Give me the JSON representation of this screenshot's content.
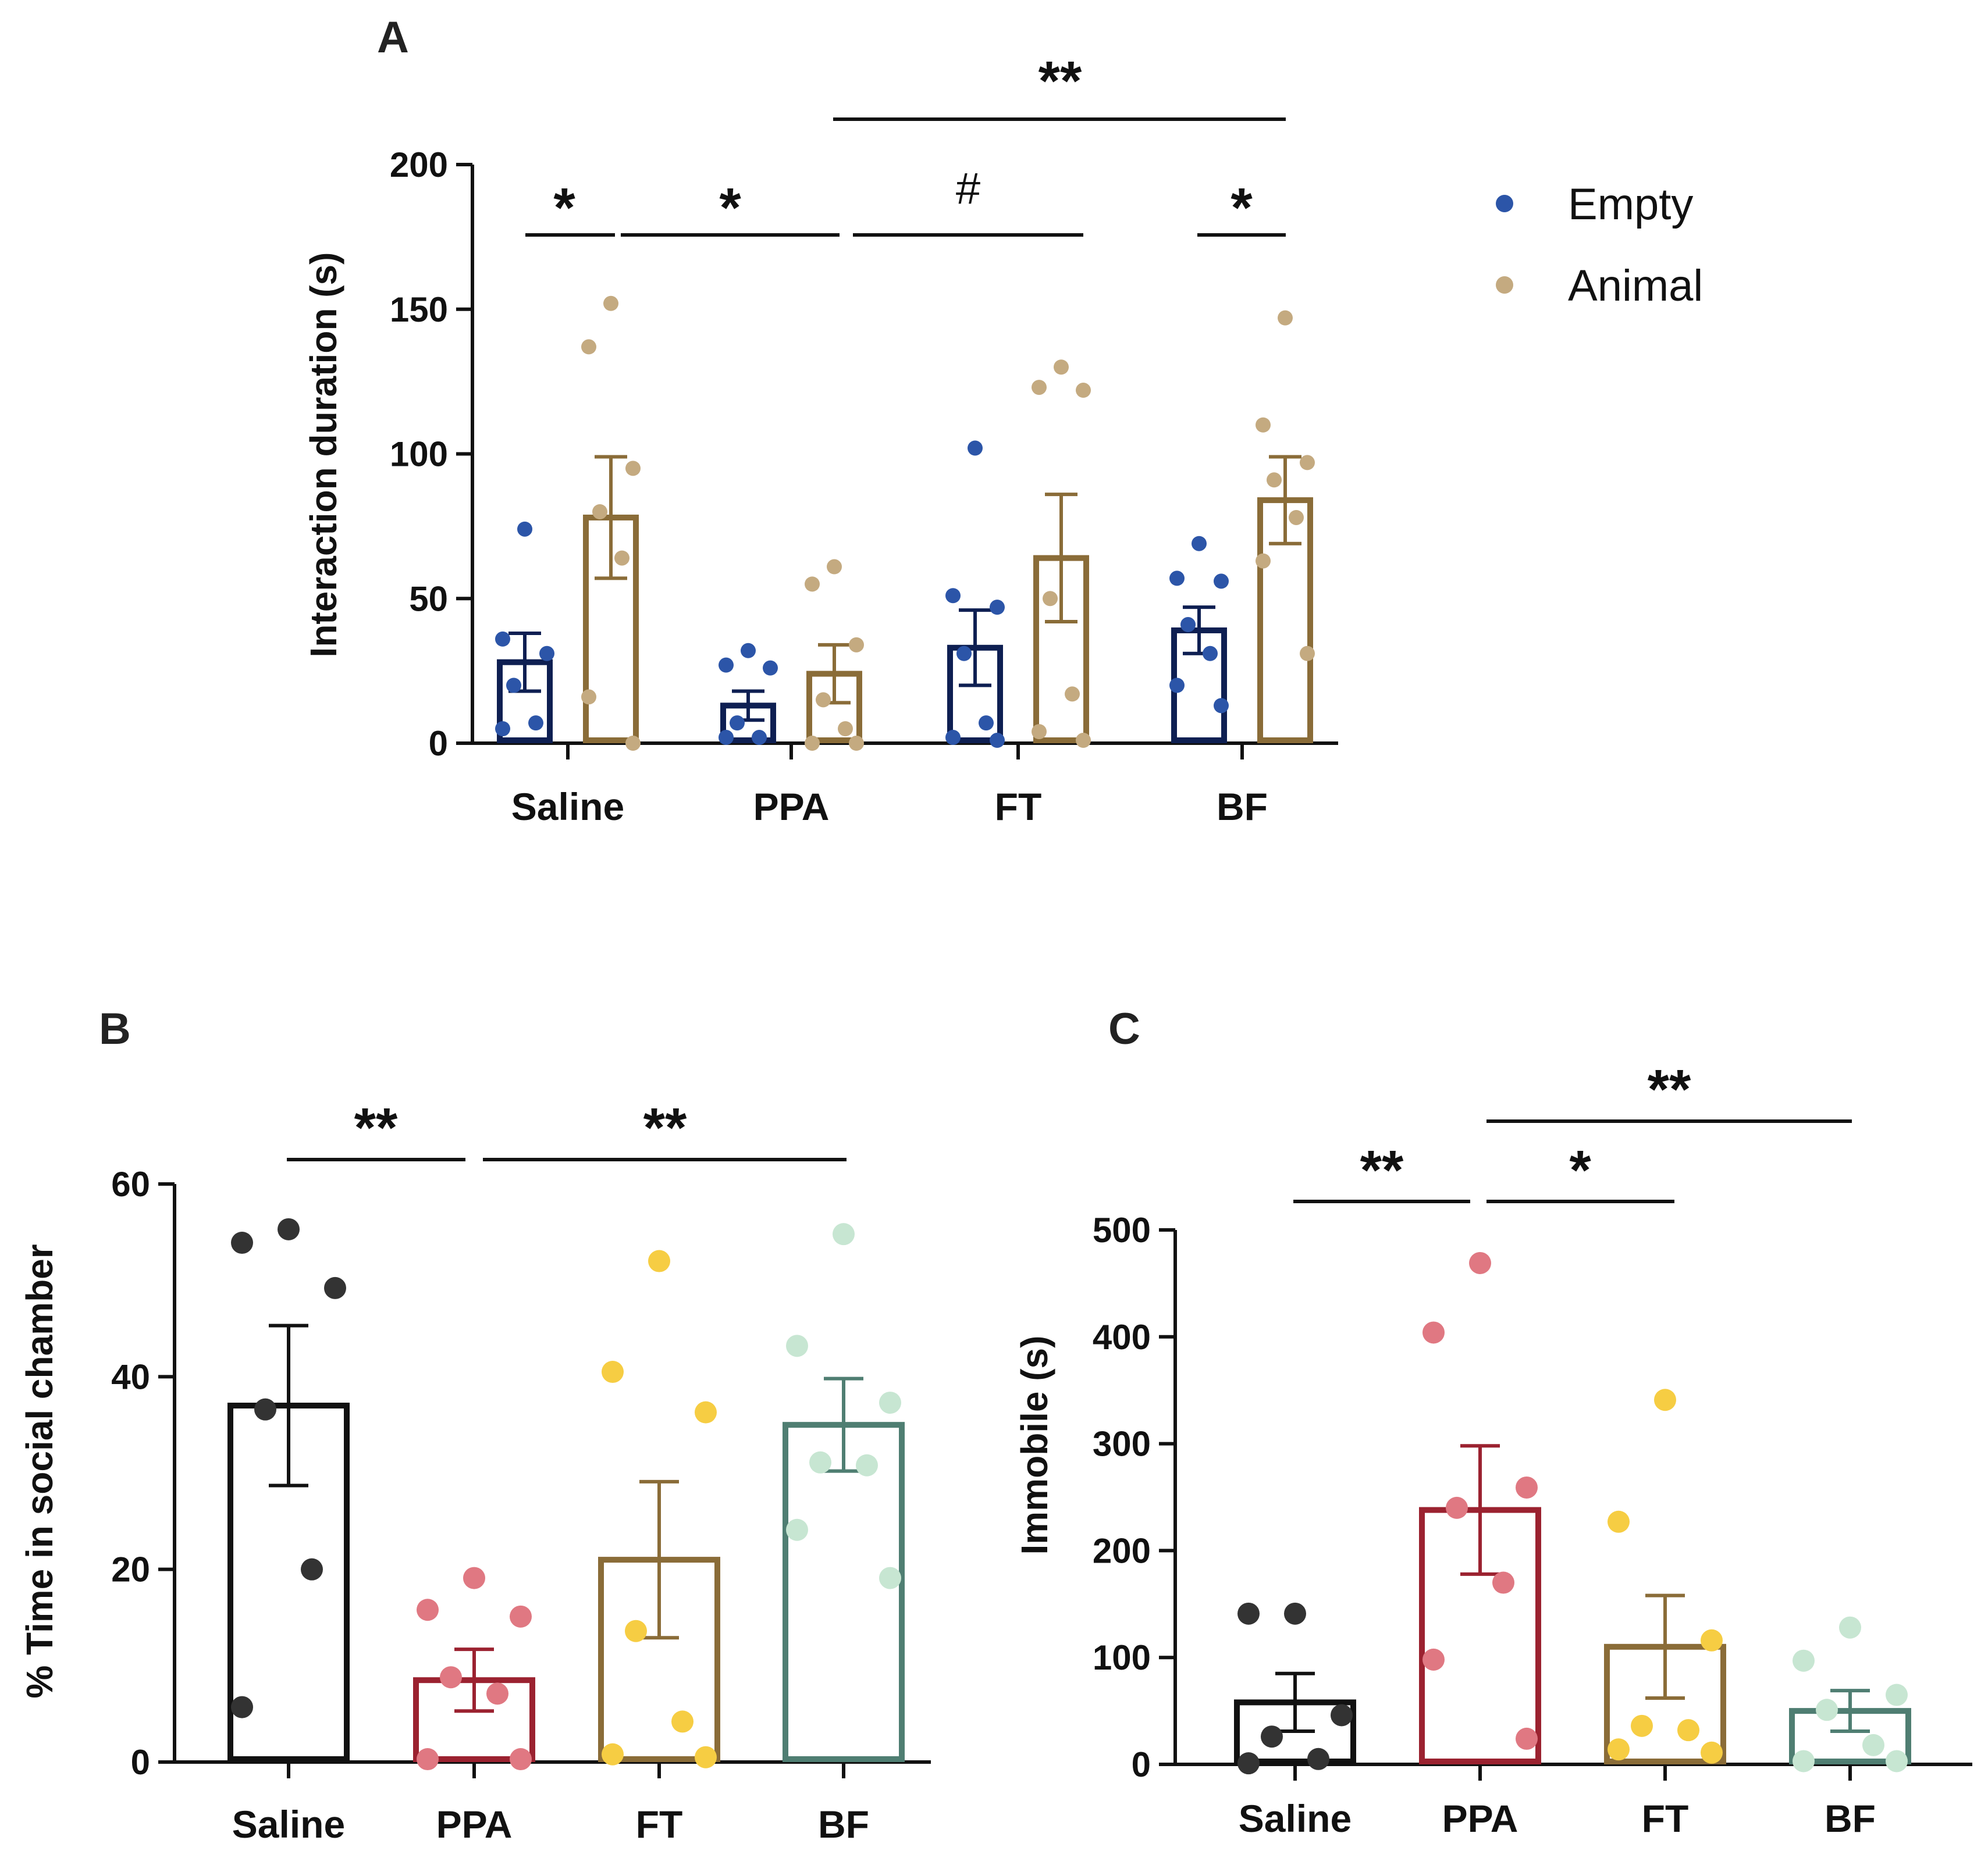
{
  "chart_data": [
    {
      "panel": "A",
      "type": "bar",
      "ylabel": "Interaction duration (s)",
      "ylim": [
        0,
        200
      ],
      "yticks": [
        0,
        50,
        100,
        150,
        200
      ],
      "categories": [
        "Saline",
        "PPA",
        "FT",
        "BF"
      ],
      "legend": [
        {
          "name": "Empty",
          "color": "#2c55a8"
        },
        {
          "name": "Animal",
          "color": "#c4aa80"
        }
      ],
      "series": [
        {
          "name": "Empty",
          "bar_color": "#0e1f52",
          "point_color": "#2c55a8",
          "values": [
            28,
            13,
            33,
            39
          ],
          "sem": [
            10,
            5,
            13,
            8
          ],
          "points": [
            [
              74,
              36,
              31,
              20,
              7,
              5
            ],
            [
              32,
              27,
              26,
              7,
              2,
              2
            ],
            [
              102,
              51,
              47,
              31,
              7,
              2,
              1
            ],
            [
              69,
              57,
              56,
              41,
              31,
              20,
              13
            ]
          ]
        },
        {
          "name": "Animal",
          "bar_color": "#8a6c38",
          "point_color": "#c4aa80",
          "values": [
            78,
            24,
            64,
            84
          ],
          "sem": [
            21,
            10,
            22,
            15
          ],
          "points": [
            [
              152,
              137,
              95,
              80,
              64,
              16,
              0
            ],
            [
              61,
              55,
              34,
              15,
              5,
              0,
              0
            ],
            [
              130,
              123,
              122,
              50,
              17,
              4,
              1
            ],
            [
              147,
              110,
              97,
              91,
              78,
              63,
              31
            ]
          ]
        }
      ],
      "significance": [
        {
          "label": "*"
        },
        {
          "label": "*"
        },
        {
          "label": "#"
        },
        {
          "label": "*"
        },
        {
          "label": "**"
        }
      ]
    },
    {
      "panel": "B",
      "type": "bar",
      "ylabel": "% Time in social chamber",
      "ylim": [
        0,
        60
      ],
      "yticks": [
        0,
        20,
        40,
        60
      ],
      "categories": [
        "Saline",
        "PPA",
        "FT",
        "BF"
      ],
      "bar_colors": [
        "#111111",
        "#9b2230",
        "#8a6c38",
        "#4f7e72"
      ],
      "point_colors": [
        "#333333",
        "#e07882",
        "#f6cd43",
        "#c7e6d2"
      ],
      "values": [
        37,
        8.5,
        21,
        35
      ],
      "sem": [
        8.3,
        3.2,
        8.1,
        4.8
      ],
      "points": [
        [
          55.3,
          53.9,
          49.2,
          36.6,
          20,
          5.7
        ],
        [
          19.1,
          15.8,
          15.1,
          8.8,
          7.1,
          0.3,
          0.3
        ],
        [
          52,
          40.5,
          36.3,
          13.6,
          4.2,
          0.8,
          0.5
        ],
        [
          54.8,
          43.2,
          37.3,
          31.1,
          30.8,
          24.1,
          19.1
        ]
      ],
      "significance": [
        {
          "label": "**"
        },
        {
          "label": "**"
        }
      ]
    },
    {
      "panel": "C",
      "type": "bar",
      "ylabel": "Immobile (s)",
      "ylim": [
        0,
        500
      ],
      "yticks": [
        0,
        100,
        200,
        300,
        400,
        500
      ],
      "categories": [
        "Saline",
        "PPA",
        "FT",
        "BF"
      ],
      "bar_colors": [
        "#111111",
        "#9b2230",
        "#8a6c38",
        "#4f7e72"
      ],
      "point_colors": [
        "#333333",
        "#e07882",
        "#f6cd43",
        "#c7e6d2"
      ],
      "values": [
        58,
        238,
        110,
        50
      ],
      "sem": [
        27,
        60,
        48,
        19
      ],
      "points": [
        [
          141,
          141,
          46,
          26,
          5,
          1
        ],
        [
          469,
          404,
          259,
          240,
          170,
          98,
          24
        ],
        [
          341,
          227,
          116,
          36,
          32,
          14,
          11
        ],
        [
          128,
          97,
          65,
          51,
          18,
          3,
          3
        ]
      ],
      "significance": [
        {
          "label": "**"
        },
        {
          "label": "*"
        },
        {
          "label": "**"
        }
      ]
    }
  ]
}
